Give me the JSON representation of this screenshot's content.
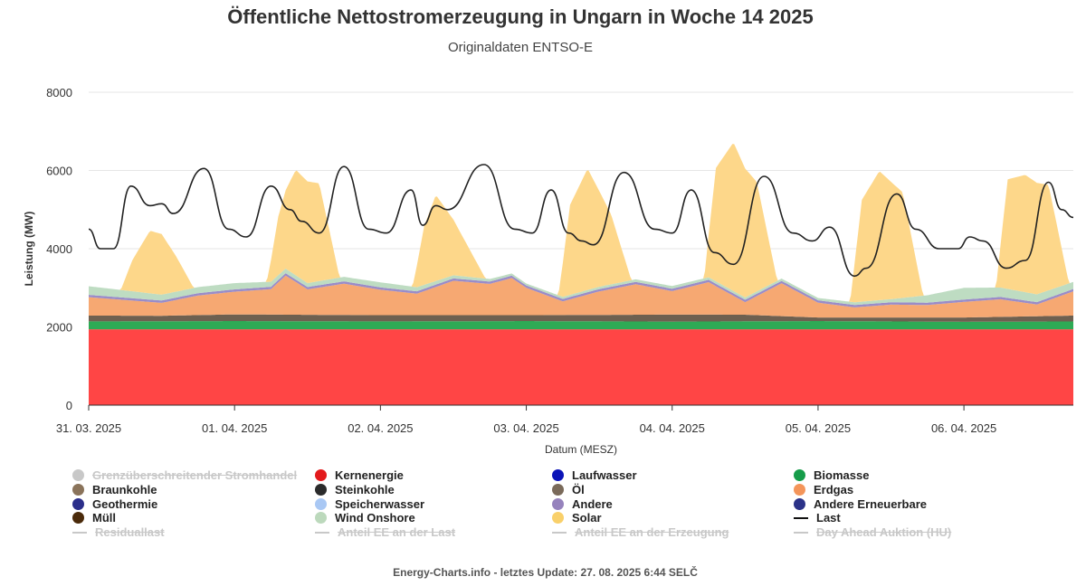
{
  "page": {
    "title": "Öffentliche Nettostromerzeugung in Ungarn in Woche 14 2025",
    "subtitle": "Originaldaten ENTSO-E",
    "footer": "Energy-Charts.info - letztes Update: 27. 08. 2025 6:44 SELČ"
  },
  "chart_data": {
    "type": "area",
    "stacked": true,
    "xlabel": "Datum (MESZ)",
    "ylabel": "Leistung (MW)",
    "ylim": [
      0,
      8000
    ],
    "yticks": [
      0,
      2000,
      4000,
      6000,
      8000
    ],
    "x_unit": "day",
    "xlim": [
      0,
      6.75
    ],
    "x_tick_labels": [
      "31. 03. 2025",
      "01. 04. 2025",
      "02. 04. 2025",
      "03. 04. 2025",
      "04. 04. 2025",
      "05. 04. 2025",
      "06. 04. 2025"
    ],
    "grid": true,
    "legend_position": "bottom",
    "series": [
      {
        "name": "Kernenergie",
        "color": "#ff4545",
        "values": [
          {
            "x": 0,
            "y": 1940
          },
          {
            "x": 6.75,
            "y": 1940
          }
        ]
      },
      {
        "name": "Biomasse",
        "color": "#2eaa55",
        "values": [
          {
            "x": 0,
            "y": 200
          },
          {
            "x": 1.0,
            "y": 210
          },
          {
            "x": 2.0,
            "y": 200
          },
          {
            "x": 3.0,
            "y": 210
          },
          {
            "x": 4.0,
            "y": 195
          },
          {
            "x": 5.0,
            "y": 210
          },
          {
            "x": 6.0,
            "y": 190
          },
          {
            "x": 6.75,
            "y": 200
          }
        ]
      },
      {
        "name": "Braunkohle",
        "color": "#6e6050",
        "values": [
          {
            "x": 0,
            "y": 150
          },
          {
            "x": 0.5,
            "y": 140
          },
          {
            "x": 1.0,
            "y": 170
          },
          {
            "x": 2.0,
            "y": 160
          },
          {
            "x": 3.0,
            "y": 150
          },
          {
            "x": 4.0,
            "y": 180
          },
          {
            "x": 4.5,
            "y": 170
          },
          {
            "x": 5.0,
            "y": 90
          },
          {
            "x": 6.0,
            "y": 110
          },
          {
            "x": 6.75,
            "y": 150
          }
        ]
      },
      {
        "name": "Erdgas",
        "color": "#f6a872",
        "values": [
          {
            "x": 0,
            "y": 470
          },
          {
            "x": 0.25,
            "y": 400
          },
          {
            "x": 0.5,
            "y": 330
          },
          {
            "x": 0.75,
            "y": 500
          },
          {
            "x": 1.0,
            "y": 580
          },
          {
            "x": 1.25,
            "y": 650
          },
          {
            "x": 1.35,
            "y": 1000
          },
          {
            "x": 1.5,
            "y": 650
          },
          {
            "x": 1.75,
            "y": 800
          },
          {
            "x": 2.0,
            "y": 650
          },
          {
            "x": 2.25,
            "y": 550
          },
          {
            "x": 2.5,
            "y": 880
          },
          {
            "x": 2.75,
            "y": 800
          },
          {
            "x": 2.9,
            "y": 950
          },
          {
            "x": 3.0,
            "y": 700
          },
          {
            "x": 3.25,
            "y": 350
          },
          {
            "x": 3.5,
            "y": 600
          },
          {
            "x": 3.75,
            "y": 780
          },
          {
            "x": 4.0,
            "y": 600
          },
          {
            "x": 4.25,
            "y": 830
          },
          {
            "x": 4.5,
            "y": 320
          },
          {
            "x": 4.75,
            "y": 840
          },
          {
            "x": 5.0,
            "y": 380
          },
          {
            "x": 5.25,
            "y": 260
          },
          {
            "x": 5.5,
            "y": 330
          },
          {
            "x": 5.75,
            "y": 320
          },
          {
            "x": 6.0,
            "y": 400
          },
          {
            "x": 6.25,
            "y": 450
          },
          {
            "x": 6.5,
            "y": 300
          },
          {
            "x": 6.75,
            "y": 620
          }
        ]
      },
      {
        "name": "Andere",
        "color": "#9a8cc8",
        "values": [
          {
            "x": 0,
            "y": 60
          },
          {
            "x": 6.75,
            "y": 60
          }
        ]
      },
      {
        "name": "Wind Onshore",
        "color": "#bedcc2",
        "values": [
          {
            "x": 0,
            "y": 220
          },
          {
            "x": 0.5,
            "y": 150
          },
          {
            "x": 1.0,
            "y": 160
          },
          {
            "x": 1.5,
            "y": 100
          },
          {
            "x": 2.0,
            "y": 130
          },
          {
            "x": 2.5,
            "y": 80
          },
          {
            "x": 3.0,
            "y": 50
          },
          {
            "x": 3.5,
            "y": 60
          },
          {
            "x": 4.0,
            "y": 70
          },
          {
            "x": 4.5,
            "y": 60
          },
          {
            "x": 5.0,
            "y": 60
          },
          {
            "x": 5.5,
            "y": 80
          },
          {
            "x": 6.0,
            "y": 300
          },
          {
            "x": 6.25,
            "y": 240
          },
          {
            "x": 6.5,
            "y": 200
          },
          {
            "x": 6.75,
            "y": 180
          }
        ]
      },
      {
        "name": "Solar",
        "color": "#fdd78a",
        "values": [
          {
            "x": 0,
            "y": 0
          },
          {
            "x": 0.22,
            "y": 0
          },
          {
            "x": 0.3,
            "y": 800
          },
          {
            "x": 0.42,
            "y": 1600
          },
          {
            "x": 0.5,
            "y": 1550
          },
          {
            "x": 0.6,
            "y": 900
          },
          {
            "x": 0.72,
            "y": 0
          },
          {
            "x": 1.22,
            "y": 0
          },
          {
            "x": 1.3,
            "y": 1500
          },
          {
            "x": 1.42,
            "y": 2700
          },
          {
            "x": 1.58,
            "y": 2500
          },
          {
            "x": 1.72,
            "y": 0
          },
          {
            "x": 2.22,
            "y": 0
          },
          {
            "x": 2.3,
            "y": 1500
          },
          {
            "x": 2.38,
            "y": 2200
          },
          {
            "x": 2.55,
            "y": 1100
          },
          {
            "x": 2.72,
            "y": 0
          },
          {
            "x": 3.22,
            "y": 0
          },
          {
            "x": 3.3,
            "y": 2300
          },
          {
            "x": 3.42,
            "y": 3100
          },
          {
            "x": 3.58,
            "y": 1800
          },
          {
            "x": 3.72,
            "y": 0
          },
          {
            "x": 4.22,
            "y": 0
          },
          {
            "x": 4.3,
            "y": 2900
          },
          {
            "x": 4.42,
            "y": 3800
          },
          {
            "x": 4.58,
            "y": 2800
          },
          {
            "x": 4.72,
            "y": 0
          },
          {
            "x": 5.22,
            "y": 0
          },
          {
            "x": 5.3,
            "y": 2600
          },
          {
            "x": 5.42,
            "y": 3300
          },
          {
            "x": 5.58,
            "y": 2700
          },
          {
            "x": 5.72,
            "y": 0
          },
          {
            "x": 6.22,
            "y": 0
          },
          {
            "x": 6.3,
            "y": 2800
          },
          {
            "x": 6.42,
            "y": 3000
          },
          {
            "x": 6.58,
            "y": 2700
          },
          {
            "x": 6.72,
            "y": 0
          },
          {
            "x": 6.75,
            "y": 0
          }
        ]
      },
      {
        "name": "Last",
        "color": "#222222",
        "line": true,
        "values": [
          {
            "x": 0,
            "y": 4500
          },
          {
            "x": 0.08,
            "y": 4000
          },
          {
            "x": 0.17,
            "y": 4000
          },
          {
            "x": 0.29,
            "y": 5600
          },
          {
            "x": 0.42,
            "y": 5100
          },
          {
            "x": 0.5,
            "y": 5150
          },
          {
            "x": 0.58,
            "y": 4900
          },
          {
            "x": 0.79,
            "y": 6050
          },
          {
            "x": 0.96,
            "y": 4500
          },
          {
            "x": 1.08,
            "y": 4300
          },
          {
            "x": 1.25,
            "y": 5600
          },
          {
            "x": 1.38,
            "y": 5000
          },
          {
            "x": 1.46,
            "y": 4700
          },
          {
            "x": 1.58,
            "y": 4400
          },
          {
            "x": 1.75,
            "y": 6100
          },
          {
            "x": 1.92,
            "y": 4500
          },
          {
            "x": 2.04,
            "y": 4400
          },
          {
            "x": 2.21,
            "y": 5500
          },
          {
            "x": 2.29,
            "y": 4600
          },
          {
            "x": 2.38,
            "y": 5100
          },
          {
            "x": 2.46,
            "y": 5000
          },
          {
            "x": 2.71,
            "y": 6150
          },
          {
            "x": 2.92,
            "y": 4500
          },
          {
            "x": 3.04,
            "y": 4400
          },
          {
            "x": 3.17,
            "y": 5500
          },
          {
            "x": 3.29,
            "y": 4400
          },
          {
            "x": 3.38,
            "y": 4200
          },
          {
            "x": 3.46,
            "y": 4100
          },
          {
            "x": 3.67,
            "y": 5950
          },
          {
            "x": 3.88,
            "y": 4500
          },
          {
            "x": 4.0,
            "y": 4400
          },
          {
            "x": 4.13,
            "y": 5500
          },
          {
            "x": 4.29,
            "y": 3900
          },
          {
            "x": 4.42,
            "y": 3600
          },
          {
            "x": 4.63,
            "y": 5850
          },
          {
            "x": 4.83,
            "y": 4400
          },
          {
            "x": 4.96,
            "y": 4200
          },
          {
            "x": 5.08,
            "y": 4550
          },
          {
            "x": 5.25,
            "y": 3300
          },
          {
            "x": 5.33,
            "y": 3500
          },
          {
            "x": 5.54,
            "y": 5400
          },
          {
            "x": 5.67,
            "y": 4500
          },
          {
            "x": 5.83,
            "y": 4000
          },
          {
            "x": 5.96,
            "y": 4000
          },
          {
            "x": 6.04,
            "y": 4300
          },
          {
            "x": 6.13,
            "y": 4200
          },
          {
            "x": 6.29,
            "y": 3500
          },
          {
            "x": 6.42,
            "y": 3700
          },
          {
            "x": 6.58,
            "y": 5700
          },
          {
            "x": 6.67,
            "y": 5000
          },
          {
            "x": 6.75,
            "y": 4800
          }
        ]
      }
    ]
  },
  "legend": {
    "items": [
      {
        "label": "Grenzüberschreitender Stromhandel",
        "color": "#c8c8c8",
        "kind": "dot",
        "hidden": true
      },
      {
        "label": "Kernenergie",
        "color": "#e31a1c",
        "kind": "dot",
        "hidden": false
      },
      {
        "label": "Laufwasser",
        "color": "#0c14b8",
        "kind": "dot",
        "hidden": false
      },
      {
        "label": "Biomasse",
        "color": "#169c4a",
        "kind": "dot",
        "hidden": false
      },
      {
        "label": "Braunkohle",
        "color": "#8a735a",
        "kind": "dot",
        "hidden": false
      },
      {
        "label": "Steinkohle",
        "color": "#2b2b2b",
        "kind": "dot",
        "hidden": false
      },
      {
        "label": "Öl",
        "color": "#7a6a5a",
        "kind": "dot",
        "hidden": false
      },
      {
        "label": "Erdgas",
        "color": "#f4955a",
        "kind": "dot",
        "hidden": false
      },
      {
        "label": "Geothermie",
        "color": "#2b2e8a",
        "kind": "dot",
        "hidden": false
      },
      {
        "label": "Speicherwasser",
        "color": "#a9c8f4",
        "kind": "dot",
        "hidden": false
      },
      {
        "label": "Andere",
        "color": "#9683bd",
        "kind": "dot",
        "hidden": false
      },
      {
        "label": "Andere Erneuerbare",
        "color": "#2b3288",
        "kind": "dot",
        "hidden": false
      },
      {
        "label": "Müll",
        "color": "#4a2a0a",
        "kind": "dot",
        "hidden": false
      },
      {
        "label": "Wind Onshore",
        "color": "#bcd9bc",
        "kind": "dot",
        "hidden": false
      },
      {
        "label": "Solar",
        "color": "#f9d06a",
        "kind": "dot",
        "hidden": false
      },
      {
        "label": "Last",
        "color": "#111111",
        "kind": "line",
        "hidden": false
      },
      {
        "label": "Residuallast",
        "color": "#c8c8c8",
        "kind": "line",
        "hidden": true
      },
      {
        "label": "Anteil EE an der Last",
        "color": "#c8c8c8",
        "kind": "line",
        "hidden": true
      },
      {
        "label": "Anteil EE an der Erzeugung",
        "color": "#c8c8c8",
        "kind": "line",
        "hidden": true
      },
      {
        "label": "Day Ahead Auktion (HU)",
        "color": "#c8c8c8",
        "kind": "line",
        "hidden": true
      }
    ]
  }
}
